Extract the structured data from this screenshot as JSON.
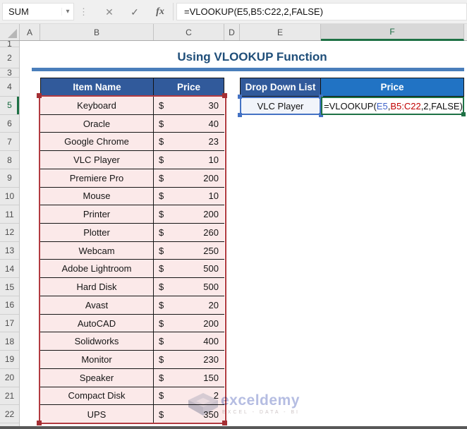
{
  "formula_bar": {
    "name_box": "SUM",
    "formula": "=VLOOKUP(E5,B5:C22,2,FALSE)",
    "icons": {
      "dropdown": "▾",
      "drag_dots": "⋮",
      "cancel": "✕",
      "enter": "✓",
      "fx": "fx"
    }
  },
  "columns": [
    "A",
    "B",
    "C",
    "D",
    "E",
    "F"
  ],
  "row_numbers": [
    "1",
    "2",
    "3",
    "4",
    "5",
    "6",
    "7",
    "8",
    "9",
    "10",
    "11",
    "12",
    "13",
    "14",
    "15",
    "16",
    "17",
    "18",
    "19",
    "20",
    "21",
    "22"
  ],
  "title": "Using VLOOKUP Function",
  "left_table": {
    "headers": [
      "Item Name",
      "Price"
    ],
    "currency": "$",
    "rows": [
      {
        "item": "Keyboard",
        "price": "30"
      },
      {
        "item": "Oracle",
        "price": "40"
      },
      {
        "item": "Google Chrome",
        "price": "23"
      },
      {
        "item": "VLC Player",
        "price": "10"
      },
      {
        "item": "Premiere Pro",
        "price": "200"
      },
      {
        "item": "Mouse",
        "price": "10"
      },
      {
        "item": "Printer",
        "price": "200"
      },
      {
        "item": "Plotter",
        "price": "260"
      },
      {
        "item": "Webcam",
        "price": "250"
      },
      {
        "item": "Adobe Lightroom",
        "price": "500"
      },
      {
        "item": "Hard Disk",
        "price": "500"
      },
      {
        "item": "Avast",
        "price": "20"
      },
      {
        "item": "AutoCAD",
        "price": "200"
      },
      {
        "item": "Solidworks",
        "price": "400"
      },
      {
        "item": "Monitor",
        "price": "230"
      },
      {
        "item": "Speaker",
        "price": "150"
      },
      {
        "item": "Compact Disk",
        "price": "2"
      },
      {
        "item": "UPS",
        "price": "350"
      }
    ]
  },
  "right_table": {
    "dropdown_header": "Drop Down List",
    "price_header": "Price",
    "dropdown_value": "VLC Player",
    "formula_parts": {
      "pre": "=VLOOKUP(",
      "ref1": "E5",
      "comma": ",",
      "ref2": "B5:C22",
      "post": ",2,FALSE)"
    }
  },
  "watermark": {
    "brand": "exceldemy",
    "tagline": "EXCEL - DATA - BI"
  },
  "colors": {
    "table_header_blue": "#315A9B",
    "price_header_blue": "#2173C4",
    "body_pink": "#FBE9E9",
    "range_border_red": "#B23B40",
    "ref_blue": "#4472C4",
    "ref_red": "#C00000",
    "active_cell_green": "#1E7145",
    "title_navy": "#1F4E79",
    "title_underline_blue": "#4A7EBB"
  }
}
